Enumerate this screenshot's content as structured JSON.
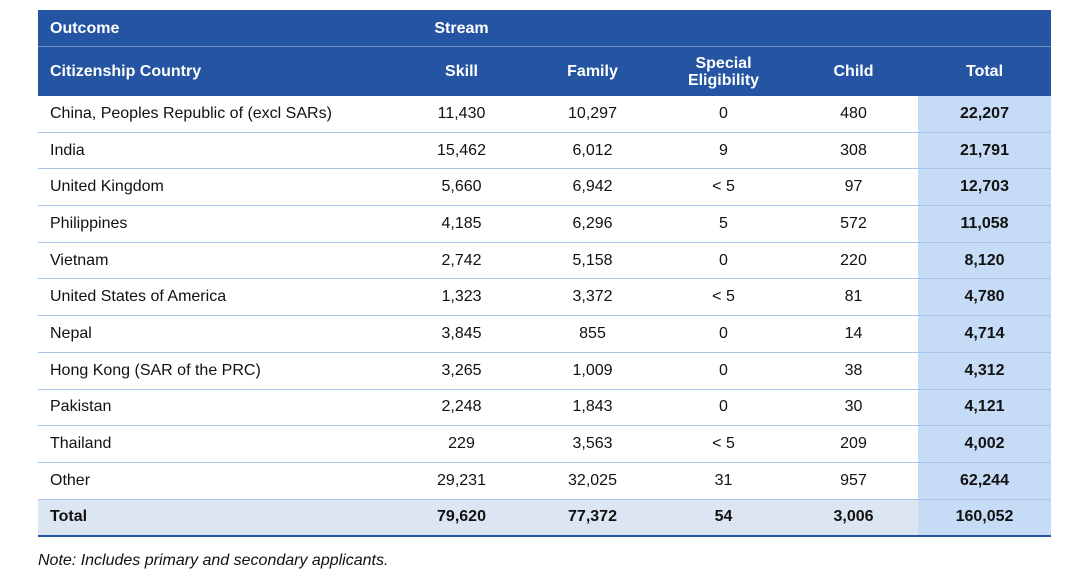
{
  "header": {
    "outcome": "Outcome",
    "stream": "Stream",
    "columns": [
      "Citizenship Country",
      "Skill",
      "Family",
      "Special Eligibility",
      "Child",
      "Total"
    ]
  },
  "rows": [
    [
      "China, Peoples Republic of (excl SARs)",
      "11,430",
      "10,297",
      "0",
      "480",
      "22,207"
    ],
    [
      "India",
      "15,462",
      "6,012",
      "9",
      "308",
      "21,791"
    ],
    [
      "United Kingdom",
      "5,660",
      "6,942",
      "< 5",
      "97",
      "12,703"
    ],
    [
      "Philippines",
      "4,185",
      "6,296",
      "5",
      "572",
      "11,058"
    ],
    [
      "Vietnam",
      "2,742",
      "5,158",
      "0",
      "220",
      "8,120"
    ],
    [
      "United States of America",
      "1,323",
      "3,372",
      "< 5",
      "81",
      "4,780"
    ],
    [
      "Nepal",
      "3,845",
      "855",
      "0",
      "14",
      "4,714"
    ],
    [
      "Hong Kong (SAR of the PRC)",
      "3,265",
      "1,009",
      "0",
      "38",
      "4,312"
    ],
    [
      "Pakistan",
      "2,248",
      "1,843",
      "0",
      "30",
      "4,121"
    ],
    [
      "Thailand",
      "229",
      "3,563",
      "< 5",
      "209",
      "4,002"
    ],
    [
      "Other",
      "29,231",
      "32,025",
      "31",
      "957",
      "62,244"
    ]
  ],
  "total_row": [
    "Total",
    "79,620",
    "77,372",
    "54",
    "3,006",
    "160,052"
  ],
  "note": "Note: Includes primary and secondary applicants."
}
